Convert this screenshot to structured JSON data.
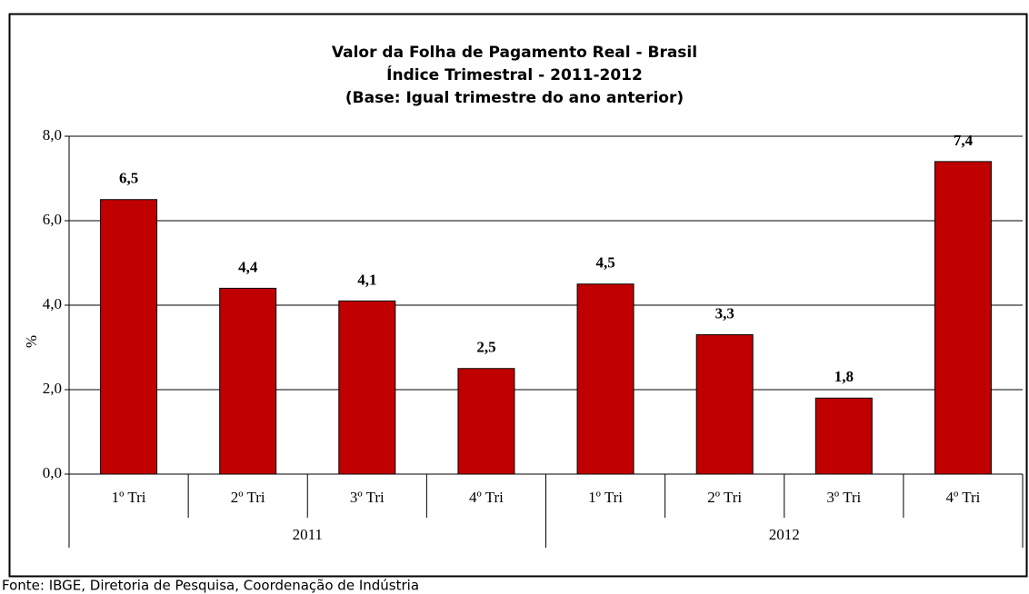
{
  "chart_data": {
    "type": "bar",
    "title": [
      "Valor da Folha de Pagamento Real - Brasil",
      "Índice Trimestral - 2011-2012",
      "(Base: Igual trimestre do ano anterior)"
    ],
    "categories": [
      "1º Tri",
      "2º Tri",
      "3º Tri",
      "4º Tri",
      "1º Tri",
      "2º Tri",
      "3º Tri",
      "4º Tri"
    ],
    "groups": [
      "2011",
      "2012"
    ],
    "values": [
      6.5,
      4.4,
      4.1,
      2.5,
      4.5,
      3.3,
      1.8,
      7.4
    ],
    "value_labels": [
      "6,5",
      "4,4",
      "4,1",
      "2,5",
      "4,5",
      "3,3",
      "1,8",
      "7,4"
    ],
    "color": "#c00000",
    "ylabel": "%",
    "ylim": [
      0,
      8
    ],
    "yticks": [
      {
        "value": 0,
        "label": "0,0"
      },
      {
        "value": 2,
        "label": "2,0"
      },
      {
        "value": 4,
        "label": "4,0"
      },
      {
        "value": 6,
        "label": "6,0"
      },
      {
        "value": 8,
        "label": "8,0"
      }
    ],
    "grid": true
  },
  "source": "Fonte: IBGE, Diretoria de Pesquisa, Coordenação de Indústria"
}
